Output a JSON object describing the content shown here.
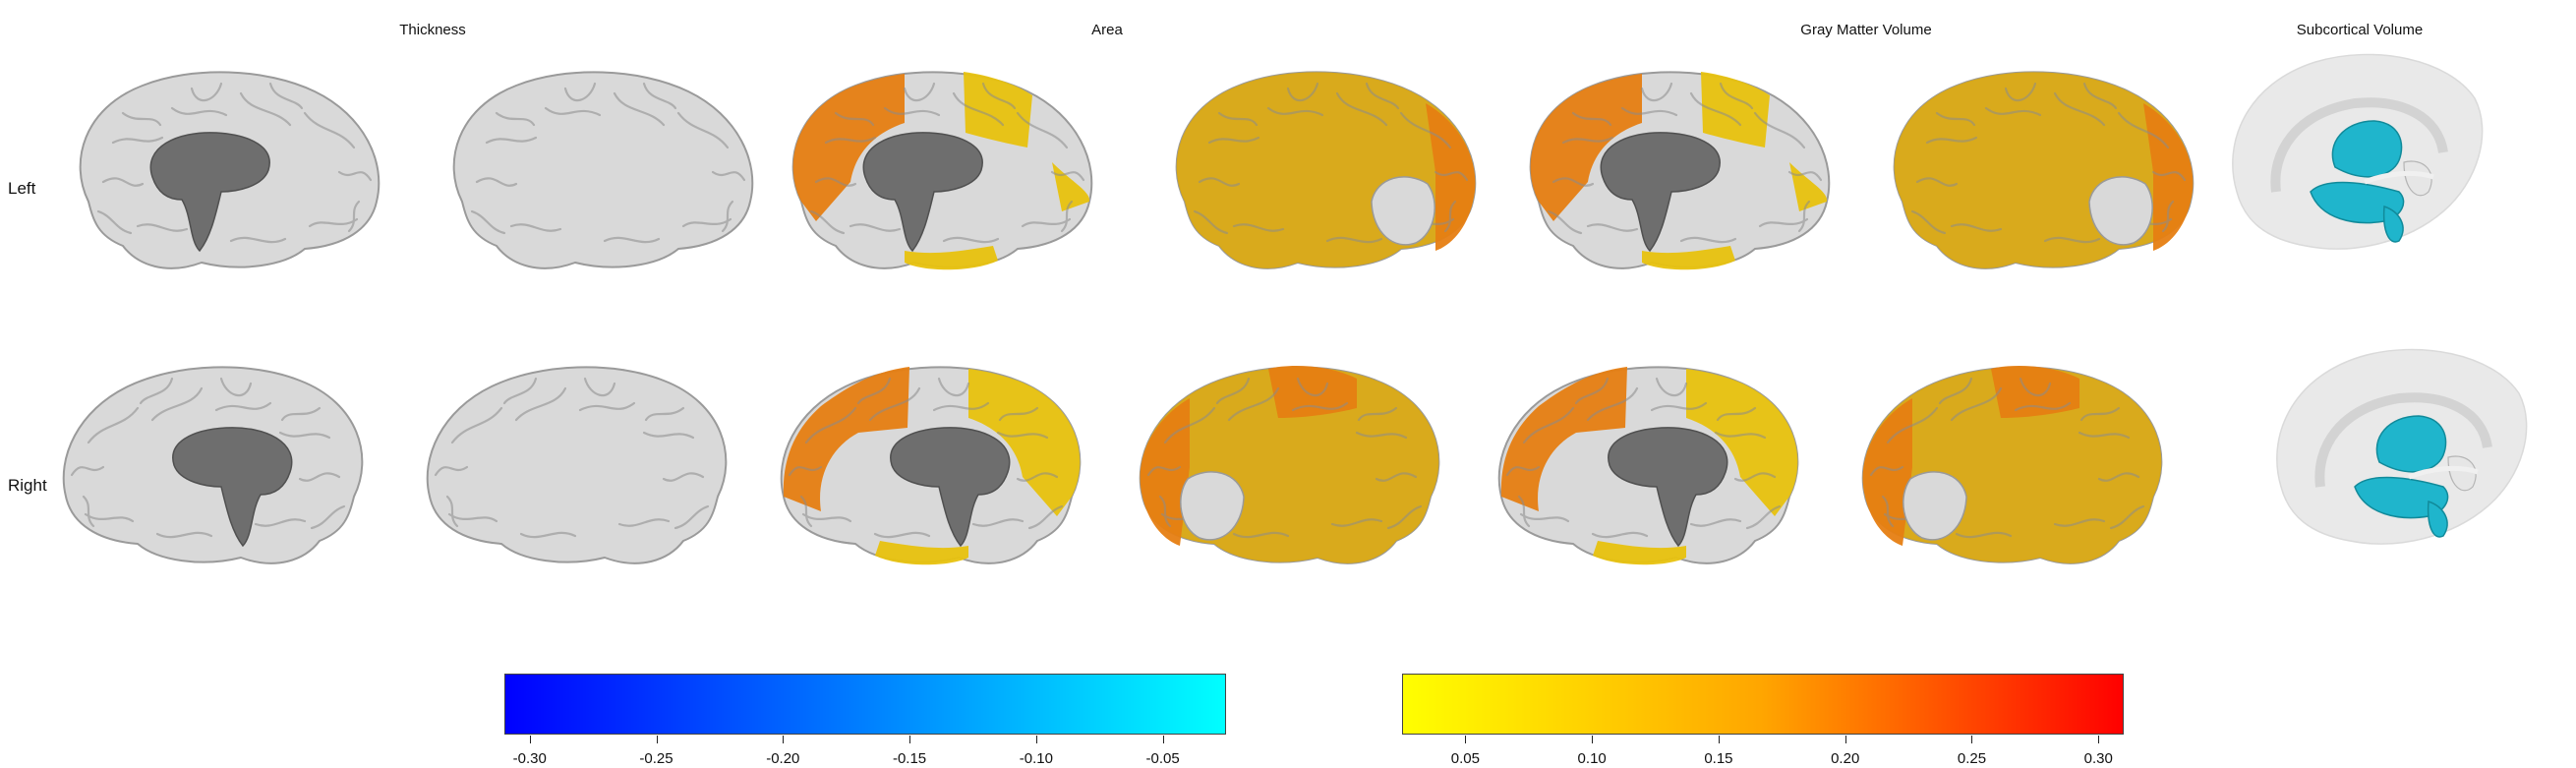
{
  "columns": {
    "thickness": "Thickness",
    "area": "Area",
    "gmv": "Gray Matter Volume",
    "subcortical": "Subcortical Volume"
  },
  "rows": {
    "left": "Left",
    "right": "Right"
  },
  "colors": {
    "plain_cortex": "#d9d9d9",
    "medial_wall": "#6e6e6e",
    "orange_region": "#e67e12",
    "yellow_region": "#e8c20e",
    "gold_region": "#d9a812",
    "subcortical_structure": "#1fb5cc",
    "negative_scale": [
      "#0000ff",
      "#00ffff"
    ],
    "positive_scale": [
      "#ffff00",
      "#ffa500",
      "#ff0000"
    ]
  },
  "chart_data": [
    {
      "type": "heatmap",
      "title": "",
      "scale": "negative",
      "colors": [
        "#0000ff",
        "#00ffff"
      ],
      "range": [
        -0.31,
        -0.025
      ],
      "ticks": [
        "-0.30",
        "-0.25",
        "-0.20",
        "-0.15",
        "-0.10",
        "-0.05"
      ]
    },
    {
      "type": "heatmap",
      "title": "",
      "scale": "positive",
      "colors": [
        "#ffff00",
        "#ffa500",
        "#ff0000"
      ],
      "range": [
        0.025,
        0.31
      ],
      "ticks": [
        "0.05",
        "0.10",
        "0.15",
        "0.20",
        "0.25",
        "0.30"
      ]
    }
  ]
}
